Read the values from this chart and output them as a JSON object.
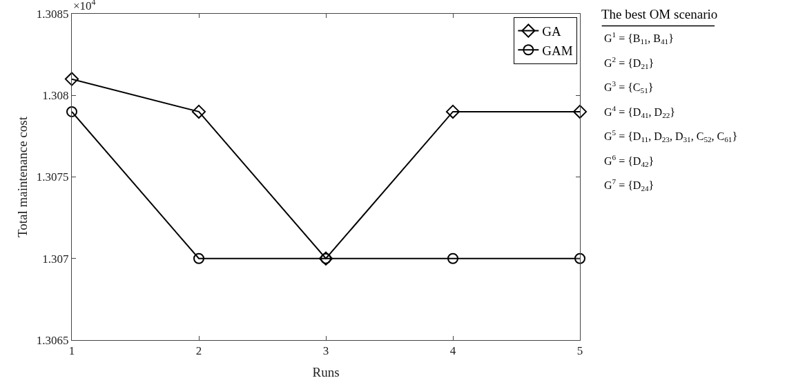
{
  "chart_data": {
    "type": "line",
    "xlabel": "Runs",
    "ylabel": "Total maintenance cost",
    "x": [
      1,
      2,
      3,
      4,
      5
    ],
    "series": [
      {
        "name": "GA",
        "color": "#000000",
        "marker": "diamond",
        "values": [
          1.3081,
          1.3079,
          1.307,
          1.3079,
          1.3079
        ]
      },
      {
        "name": "GAM",
        "color": "#000000",
        "marker": "circle",
        "values": [
          1.3079,
          1.307,
          1.307,
          1.307,
          1.307
        ]
      }
    ],
    "xlim": [
      1,
      5
    ],
    "xticks": [
      1,
      2,
      3,
      4,
      5
    ],
    "ylim": [
      1.3065,
      1.3085
    ],
    "yticks": [
      1.3065,
      1.307,
      1.3075,
      1.308,
      1.3085
    ],
    "legend": "top right",
    "line_style": "solid",
    "annotations": [
      "×10$^{4}$",
      "The best OM scenario",
      "G$^{1}$ = {B$_{11}$, B$_{41}$}",
      "G$^{2}$ = {D$_{21}$}",
      "G$^{3}$ = {C$_{51}$}",
      "G$^{4}$ = {D$_{41}$, D$_{22}$}",
      "G$^{5}$ = {D$_{11}$, D$_{23}$, D$_{31}$, C$_{52}$, C$_{61}$}",
      "G$^{6}$ = {D$_{42}$}",
      "G$^{7}$ = {D$_{24}$}"
    ]
  }
}
